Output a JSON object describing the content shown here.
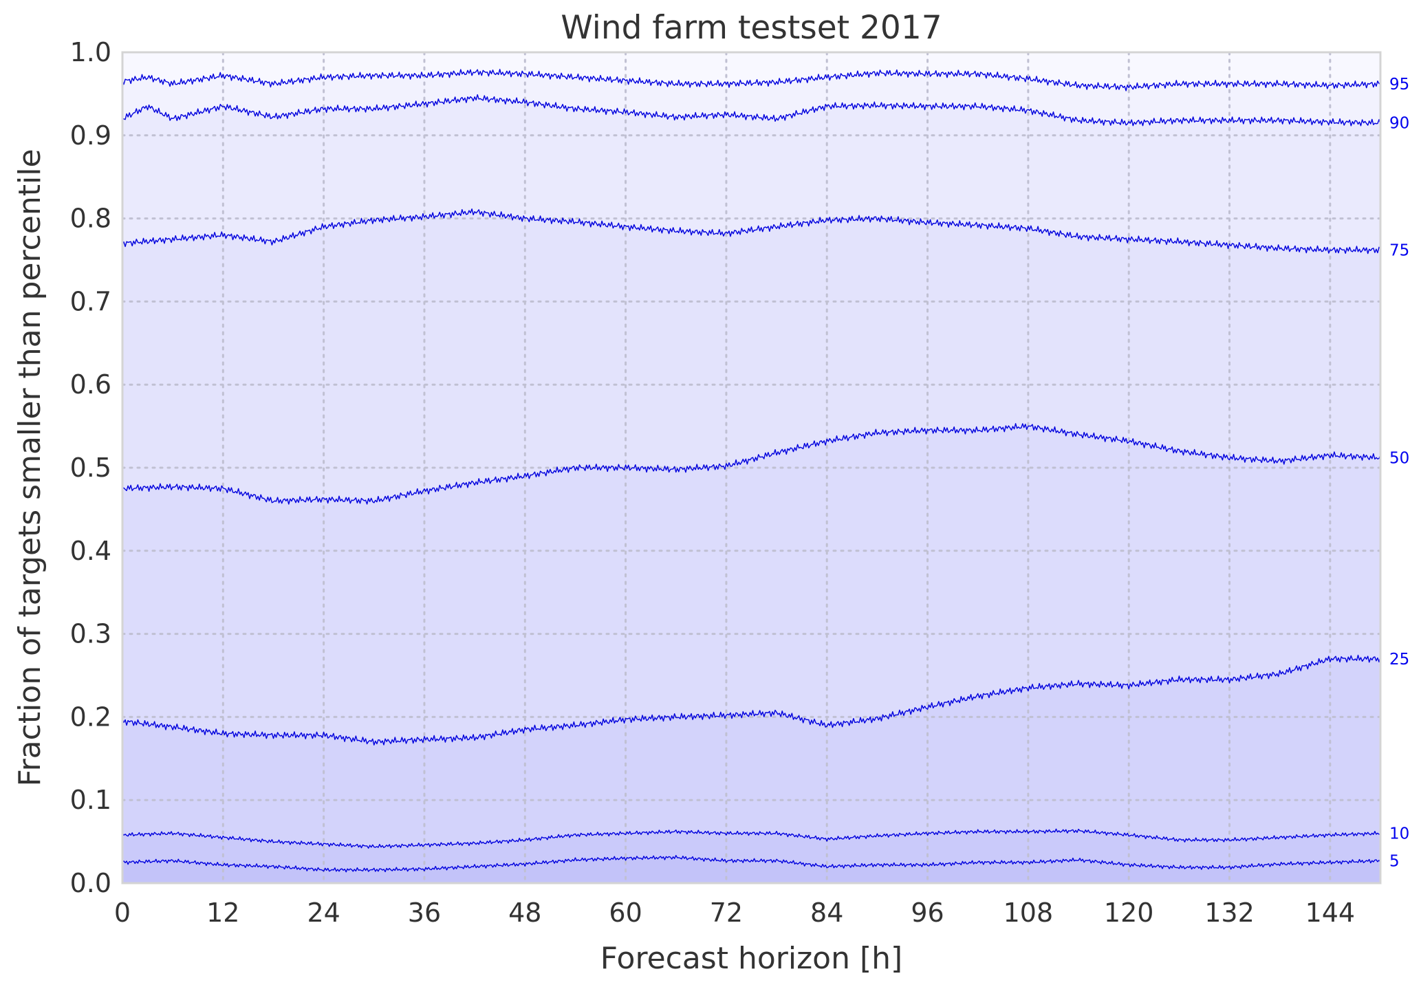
{
  "chart_data": {
    "type": "area",
    "title": "Wind farm testset 2017",
    "xlabel": "Forecast horizon [h]",
    "ylabel": "Fraction of targets smaller than percentile",
    "xlim": [
      0,
      150
    ],
    "ylim": [
      0.0,
      1.0
    ],
    "xticks": [
      0,
      12,
      24,
      36,
      48,
      60,
      72,
      84,
      96,
      108,
      120,
      132,
      144
    ],
    "xtick_labels": [
      "0",
      "12",
      "24",
      "36",
      "48",
      "60",
      "72",
      "84",
      "96",
      "108",
      "120",
      "132",
      "144"
    ],
    "yticks": [
      0.0,
      0.1,
      0.2,
      0.3,
      0.4,
      0.5,
      0.6,
      0.7,
      0.8,
      0.9,
      1.0
    ],
    "ytick_labels": [
      "0.0",
      "0.1",
      "0.2",
      "0.3",
      "0.4",
      "0.5",
      "0.6",
      "0.7",
      "0.8",
      "0.9",
      "1.0"
    ],
    "grid": true,
    "line_color": "#0000dd",
    "series_label_color": "#0000ee",
    "series": [
      {
        "name": "5",
        "fill": "#c3c3f9",
        "x": [
          0,
          6,
          12,
          18,
          24,
          30,
          36,
          42,
          48,
          54,
          60,
          66,
          72,
          78,
          84,
          90,
          96,
          102,
          108,
          114,
          120,
          126,
          132,
          138,
          144,
          150
        ],
        "y": [
          0.025,
          0.027,
          0.022,
          0.02,
          0.016,
          0.016,
          0.017,
          0.02,
          0.023,
          0.028,
          0.03,
          0.031,
          0.027,
          0.027,
          0.02,
          0.022,
          0.022,
          0.025,
          0.025,
          0.028,
          0.022,
          0.019,
          0.019,
          0.023,
          0.025,
          0.027
        ]
      },
      {
        "name": "10",
        "fill": "#cacafa",
        "x": [
          0,
          6,
          12,
          18,
          24,
          30,
          36,
          42,
          48,
          54,
          60,
          66,
          72,
          78,
          84,
          90,
          96,
          102,
          108,
          114,
          120,
          126,
          132,
          138,
          144,
          150
        ],
        "y": [
          0.058,
          0.06,
          0.055,
          0.05,
          0.047,
          0.044,
          0.046,
          0.048,
          0.052,
          0.058,
          0.06,
          0.062,
          0.06,
          0.06,
          0.053,
          0.057,
          0.06,
          0.062,
          0.062,
          0.063,
          0.058,
          0.052,
          0.052,
          0.055,
          0.058,
          0.06
        ]
      },
      {
        "name": "25",
        "fill": "#d3d3fb",
        "x": [
          0,
          6,
          12,
          18,
          24,
          30,
          36,
          42,
          48,
          54,
          60,
          66,
          72,
          78,
          84,
          90,
          96,
          102,
          108,
          114,
          120,
          126,
          132,
          138,
          144,
          150
        ],
        "y": [
          0.195,
          0.188,
          0.18,
          0.178,
          0.178,
          0.17,
          0.173,
          0.175,
          0.185,
          0.19,
          0.197,
          0.2,
          0.202,
          0.205,
          0.19,
          0.198,
          0.212,
          0.225,
          0.235,
          0.24,
          0.238,
          0.245,
          0.245,
          0.252,
          0.27,
          0.27
        ]
      },
      {
        "name": "50",
        "fill": "#dcdcfc",
        "x": [
          0,
          6,
          12,
          18,
          24,
          30,
          36,
          42,
          48,
          54,
          60,
          66,
          72,
          78,
          84,
          90,
          96,
          102,
          108,
          114,
          120,
          126,
          132,
          138,
          144,
          150
        ],
        "y": [
          0.475,
          0.477,
          0.475,
          0.46,
          0.462,
          0.46,
          0.472,
          0.482,
          0.49,
          0.5,
          0.5,
          0.498,
          0.502,
          0.518,
          0.532,
          0.542,
          0.545,
          0.545,
          0.55,
          0.54,
          0.532,
          0.52,
          0.512,
          0.508,
          0.515,
          0.512
        ]
      },
      {
        "name": "75",
        "fill": "#e3e3fc",
        "x": [
          0,
          6,
          12,
          18,
          24,
          30,
          36,
          42,
          48,
          54,
          60,
          66,
          72,
          78,
          84,
          90,
          96,
          102,
          108,
          114,
          120,
          126,
          132,
          138,
          144,
          150
        ],
        "y": [
          0.77,
          0.775,
          0.78,
          0.772,
          0.79,
          0.798,
          0.802,
          0.808,
          0.8,
          0.796,
          0.79,
          0.785,
          0.782,
          0.79,
          0.798,
          0.8,
          0.795,
          0.792,
          0.788,
          0.778,
          0.775,
          0.772,
          0.768,
          0.764,
          0.762,
          0.762
        ]
      },
      {
        "name": "90",
        "fill": "#eaeafd",
        "x": [
          0,
          3,
          6,
          12,
          18,
          24,
          30,
          36,
          42,
          48,
          54,
          60,
          66,
          72,
          78,
          84,
          90,
          96,
          102,
          108,
          114,
          120,
          126,
          132,
          138,
          144,
          150
        ],
        "y": [
          0.92,
          0.935,
          0.92,
          0.935,
          0.922,
          0.932,
          0.932,
          0.938,
          0.945,
          0.94,
          0.932,
          0.928,
          0.922,
          0.925,
          0.92,
          0.935,
          0.936,
          0.935,
          0.935,
          0.93,
          0.918,
          0.915,
          0.918,
          0.918,
          0.918,
          0.916,
          0.915
        ]
      },
      {
        "name": "95",
        "fill": "#f2f2fe",
        "x": [
          0,
          3,
          6,
          12,
          18,
          24,
          30,
          36,
          42,
          48,
          54,
          60,
          66,
          72,
          78,
          84,
          90,
          96,
          102,
          108,
          114,
          120,
          126,
          132,
          138,
          144,
          150
        ],
        "y": [
          0.965,
          0.97,
          0.962,
          0.972,
          0.962,
          0.97,
          0.972,
          0.972,
          0.976,
          0.974,
          0.97,
          0.966,
          0.962,
          0.962,
          0.964,
          0.97,
          0.975,
          0.974,
          0.974,
          0.968,
          0.96,
          0.958,
          0.962,
          0.962,
          0.962,
          0.96,
          0.962
        ]
      }
    ]
  }
}
